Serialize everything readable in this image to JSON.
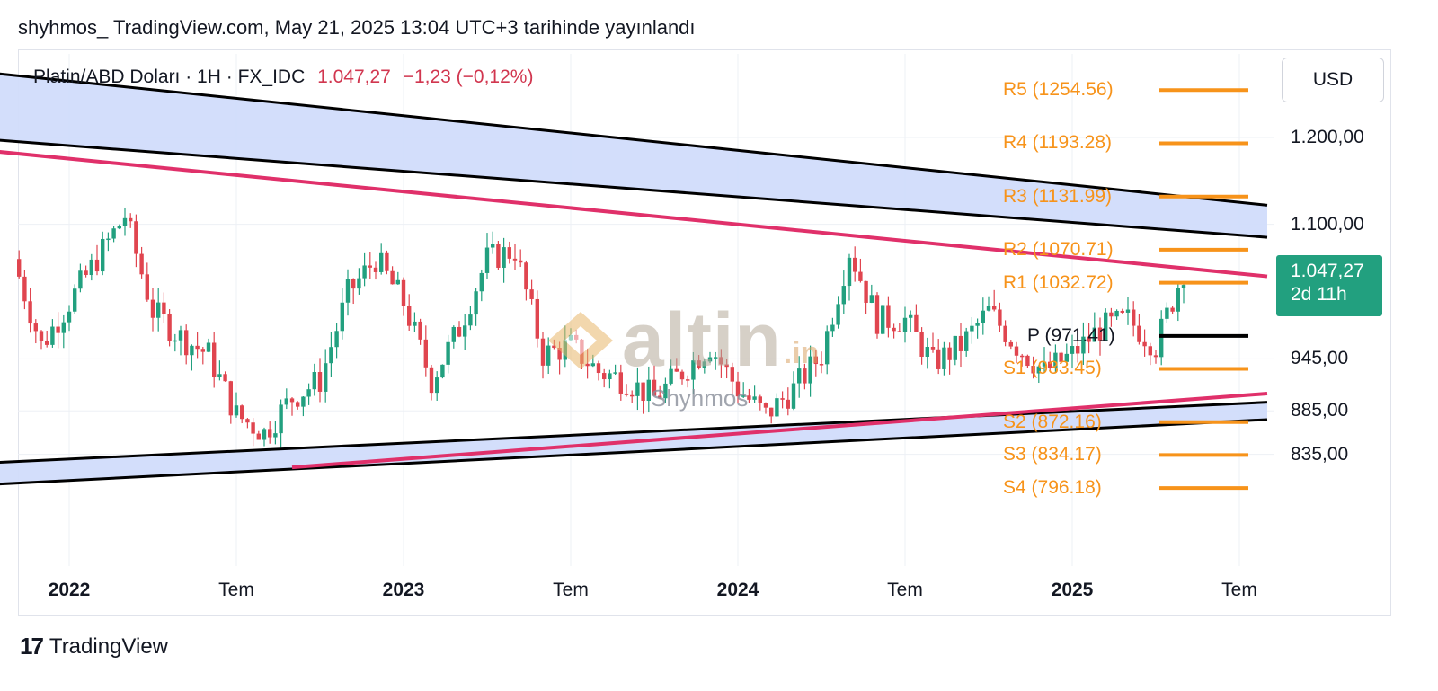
{
  "header": {
    "text": "shyhmos_ TradingView.com, May 21, 2025 13:04 UTC+3 tarihinde yayınlandı"
  },
  "legend": {
    "symbol": "Platin/ABD Doları · 1H · FX_IDC",
    "price": "1.047,27",
    "change": "−1,23 (−0,12%)"
  },
  "currency": "USD",
  "price_tag": {
    "price": "1.047,27",
    "timer": "2d 11h"
  },
  "watermark": {
    "word": "altin",
    "suffix": ".in",
    "author": "Shyhmos"
  },
  "footer": {
    "brand": "TradingView",
    "logo_glyph": "17"
  },
  "colors": {
    "up": "#22a07f",
    "down": "#e0454f",
    "channel": "#000000",
    "trendline": "#e0306a",
    "band_fill": "#d1dcfb",
    "pivot": "#f7931a",
    "pivot_p": "#000000",
    "tag": "#22a07f"
  },
  "chart_data": {
    "type": "candlestick",
    "title": "Platin/ABD Doları · 1H · FX_IDC",
    "x_ticks": [
      {
        "label": "2022",
        "date": "2022-01",
        "bold": true
      },
      {
        "label": "Tem",
        "date": "2022-07",
        "bold": false
      },
      {
        "label": "2023",
        "date": "2023-01",
        "bold": true
      },
      {
        "label": "Tem",
        "date": "2023-07",
        "bold": false
      },
      {
        "label": "2024",
        "date": "2024-01",
        "bold": true
      },
      {
        "label": "Tem",
        "date": "2024-07",
        "bold": false
      },
      {
        "label": "2025",
        "date": "2025-01",
        "bold": true
      },
      {
        "label": "Tem",
        "date": "2025-07",
        "bold": false
      }
    ],
    "y_ticks": [
      {
        "label": "1.200,00",
        "value": 1200
      },
      {
        "label": "1.100,00",
        "value": 1100
      },
      {
        "label": "945,00",
        "value": 945
      },
      {
        "label": "885,00",
        "value": 885
      },
      {
        "label": "835,00",
        "value": 835
      }
    ],
    "last_price": 1047.27,
    "pivots": [
      {
        "label": "R5 (1254.56)",
        "value": 1254.56
      },
      {
        "label": "R4 (1193.28)",
        "value": 1193.28
      },
      {
        "label": "R3 (1131.99)",
        "value": 1131.99
      },
      {
        "label": "R2 (1070.71)",
        "value": 1070.71
      },
      {
        "label": "R1 (1032.72)",
        "value": 1032.72
      },
      {
        "label": "P (971.41)",
        "value": 971.41
      },
      {
        "label": "S1 (933.45)",
        "value": 933.45
      },
      {
        "label": "S2 (872.16)",
        "value": 872.16
      },
      {
        "label": "S3 (834.17)",
        "value": 834.17
      },
      {
        "label": "S4 (796.18)",
        "value": 796.18
      }
    ],
    "trend_lines": [
      {
        "name": "channel-top-upper",
        "from": [
          "2021-10",
          1275
        ],
        "to": [
          "2025-08",
          1122
        ]
      },
      {
        "name": "channel-top-lower",
        "from": [
          "2021-10",
          1198
        ],
        "to": [
          "2025-08",
          1085
        ]
      },
      {
        "name": "resistance-trendline",
        "from": [
          "2021-10",
          1185
        ],
        "to": [
          "2025-08",
          1040
        ]
      },
      {
        "name": "channel-bottom-upper",
        "from": [
          "2021-10",
          825
        ],
        "to": [
          "2025-08",
          895
        ]
      },
      {
        "name": "channel-bottom-lower",
        "from": [
          "2021-10",
          800
        ],
        "to": [
          "2025-08",
          875
        ]
      },
      {
        "name": "support-trendline",
        "from": [
          "2022-09",
          820
        ],
        "to": [
          "2025-08",
          905
        ]
      }
    ],
    "closes": [
      {
        "date": "2021-11",
        "close": 1060
      },
      {
        "date": "2021-12",
        "close": 960
      },
      {
        "date": "2022-01",
        "close": 1010
      },
      {
        "date": "2022-02",
        "close": 1060
      },
      {
        "date": "2022-03",
        "close": 1110
      },
      {
        "date": "2022-04",
        "close": 1000
      },
      {
        "date": "2022-05",
        "close": 970
      },
      {
        "date": "2022-06",
        "close": 950
      },
      {
        "date": "2022-07",
        "close": 880
      },
      {
        "date": "2022-08",
        "close": 860
      },
      {
        "date": "2022-09",
        "close": 900
      },
      {
        "date": "2022-10",
        "close": 920
      },
      {
        "date": "2022-11",
        "close": 1020
      },
      {
        "date": "2022-12",
        "close": 1060
      },
      {
        "date": "2023-01",
        "close": 1010
      },
      {
        "date": "2023-02",
        "close": 920
      },
      {
        "date": "2023-03",
        "close": 980
      },
      {
        "date": "2023-04",
        "close": 1060
      },
      {
        "date": "2023-05",
        "close": 1070
      },
      {
        "date": "2023-06",
        "close": 950
      },
      {
        "date": "2023-07",
        "close": 960
      },
      {
        "date": "2023-08",
        "close": 930
      },
      {
        "date": "2023-09",
        "close": 920
      },
      {
        "date": "2023-10",
        "close": 900
      },
      {
        "date": "2023-11",
        "close": 930
      },
      {
        "date": "2023-12",
        "close": 960
      },
      {
        "date": "2024-01",
        "close": 910
      },
      {
        "date": "2024-02",
        "close": 880
      },
      {
        "date": "2024-03",
        "close": 910
      },
      {
        "date": "2024-04",
        "close": 950
      },
      {
        "date": "2024-05",
        "close": 1070
      },
      {
        "date": "2024-06",
        "close": 990
      },
      {
        "date": "2024-07",
        "close": 990
      },
      {
        "date": "2024-08",
        "close": 940
      },
      {
        "date": "2024-09",
        "close": 960
      },
      {
        "date": "2024-10",
        "close": 1000
      },
      {
        "date": "2024-11",
        "close": 960
      },
      {
        "date": "2024-12",
        "close": 930
      },
      {
        "date": "2025-01",
        "close": 950
      },
      {
        "date": "2025-02",
        "close": 980
      },
      {
        "date": "2025-03",
        "close": 990
      },
      {
        "date": "2025-04",
        "close": 960
      },
      {
        "date": "2025-05",
        "close": 1047
      }
    ]
  }
}
